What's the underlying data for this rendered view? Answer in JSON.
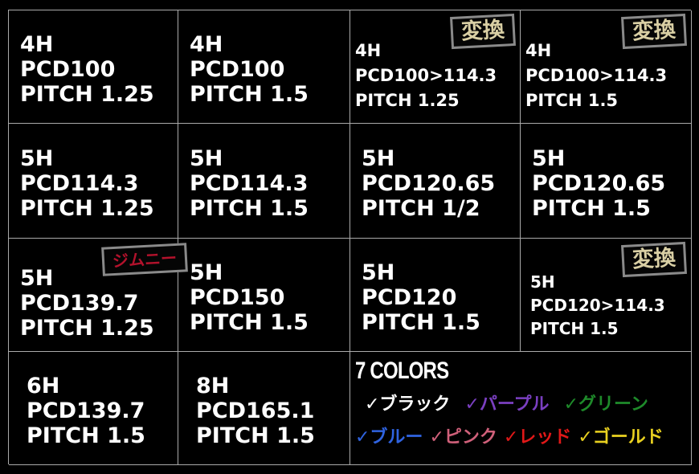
{
  "cells": [
    {
      "lines": [
        "4H",
        "PCD100",
        "PITCH 1.25"
      ]
    },
    {
      "lines": [
        "4H",
        "PCD100",
        "PITCH 1.5"
      ]
    },
    {
      "lines": [
        "4H",
        "PCD100>114.3",
        "PITCH 1.25"
      ],
      "badge": "変換"
    },
    {
      "lines": [
        "4H",
        "PCD100>114.3",
        "PITCH 1.5"
      ],
      "badge": "変換"
    },
    {
      "lines": [
        "5H",
        "PCD114.3",
        "PITCH 1.25"
      ]
    },
    {
      "lines": [
        "5H",
        "PCD114.3",
        "PITCH 1.5"
      ]
    },
    {
      "lines": [
        "5H",
        "PCD120.65",
        "PITCH 1/2"
      ]
    },
    {
      "lines": [
        "5H",
        "PCD120.65",
        "PITCH 1.5"
      ]
    },
    {
      "lines": [
        "5H",
        "PCD139.7",
        "PITCH 1.25"
      ],
      "badge": "ジムニー"
    },
    {
      "lines": [
        "5H",
        "PCD150",
        "PITCH 1.5"
      ]
    },
    {
      "lines": [
        "5H",
        "PCD120",
        "PITCH 1.5"
      ]
    },
    {
      "lines": [
        "5H",
        "PCD120>114.3",
        "PITCH 1.5"
      ],
      "badge": "変換"
    },
    {
      "lines": [
        "6H",
        "PCD139.7",
        "PITCH 1.5"
      ]
    },
    {
      "lines": [
        "8H",
        "PCD165.1",
        "PITCH 1.5"
      ]
    }
  ],
  "colors": {
    "title": "7 COLORS",
    "rows": [
      [
        {
          "label": "✓ブラック",
          "color": "#ffffff"
        },
        {
          "label": "✓パープル",
          "color": "#7a3fc0"
        },
        {
          "label": "✓グリーン",
          "color": "#1e8a2a"
        }
      ],
      [
        {
          "label": "✓ブルー",
          "color": "#2f63e0"
        },
        {
          "label": "✓ピンク",
          "color": "#d0607a"
        },
        {
          "label": "✓レッド",
          "color": "#e01818"
        },
        {
          "label": "✓ゴールド",
          "color": "#e8d020"
        }
      ]
    ]
  }
}
